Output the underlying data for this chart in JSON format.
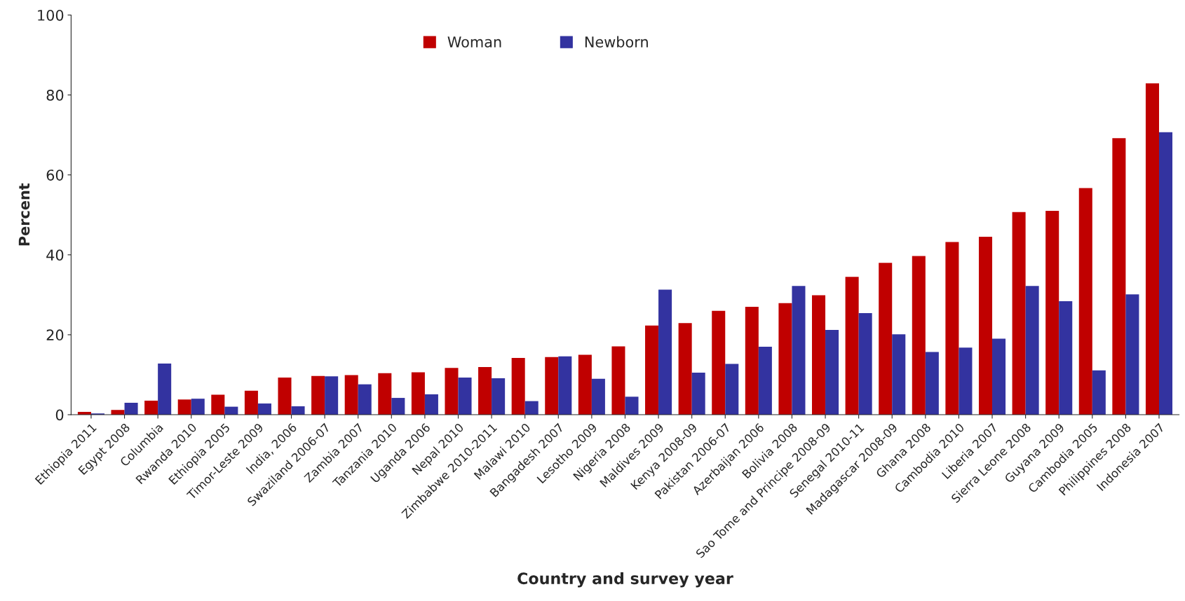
{
  "chart_data": {
    "type": "bar",
    "ylabel": "Percent",
    "xlabel": "Country and survey year",
    "categories": [
      "Ethiopia 2011",
      "Egypt 2008",
      "Columbia",
      "Rwanda 2010",
      "Ethiopia 2005",
      "Timor-Leste 2009",
      "India, 2006",
      "Swaziland 2006-07",
      "Zambia 2007",
      "Tanzania 2010",
      "Uganda 2006",
      "Nepal 2010",
      "Zimbabwe 2010-2011",
      "Malawi 2010",
      "Bangadesh 2007",
      "Lesotho 2009",
      "Nigeria 2008",
      "Maldives 2009",
      "Kenya 2008-09",
      "Pakistan 2006-07",
      "Azerbaijan 2006",
      "Bolivia 2008",
      "Sao Tome and Principe 2008-09",
      "Senegal 2010-11",
      "Madagascar 2008-09",
      "Ghana 2008",
      "Cambodia 2010",
      "Liberia 2007",
      "Sierra Leone 2008",
      "Guyana 2009",
      "Cambodia 2005",
      "Philippines 2008",
      "Indonesia 2007"
    ],
    "series": [
      {
        "name": "Woman",
        "color": "#c00000",
        "values": [
          0.7,
          1.2,
          3.5,
          3.8,
          5.0,
          6.0,
          9.3,
          9.7,
          9.9,
          10.4,
          10.6,
          11.7,
          11.9,
          14.2,
          14.4,
          15.0,
          17.1,
          22.3,
          22.9,
          26.0,
          27.0,
          27.9,
          29.9,
          34.5,
          38.0,
          39.7,
          43.2,
          44.5,
          50.7,
          51.0,
          56.7,
          69.2,
          82.9
        ]
      },
      {
        "name": "Newborn",
        "color": "#3333a0",
        "values": [
          0.3,
          3.0,
          12.8,
          4.0,
          2.0,
          2.8,
          2.1,
          9.6,
          7.6,
          4.2,
          5.1,
          9.3,
          9.1,
          3.4,
          14.6,
          9.0,
          4.5,
          31.3,
          10.5,
          12.7,
          17.0,
          32.2,
          21.2,
          25.4,
          20.1,
          15.7,
          16.8,
          19.0,
          32.2,
          28.4,
          11.1,
          30.1,
          70.7
        ]
      }
    ],
    "ylim": [
      0,
      100
    ],
    "yticks": [
      0,
      20,
      40,
      60,
      80,
      100
    ],
    "grid": false,
    "legend": "top"
  }
}
